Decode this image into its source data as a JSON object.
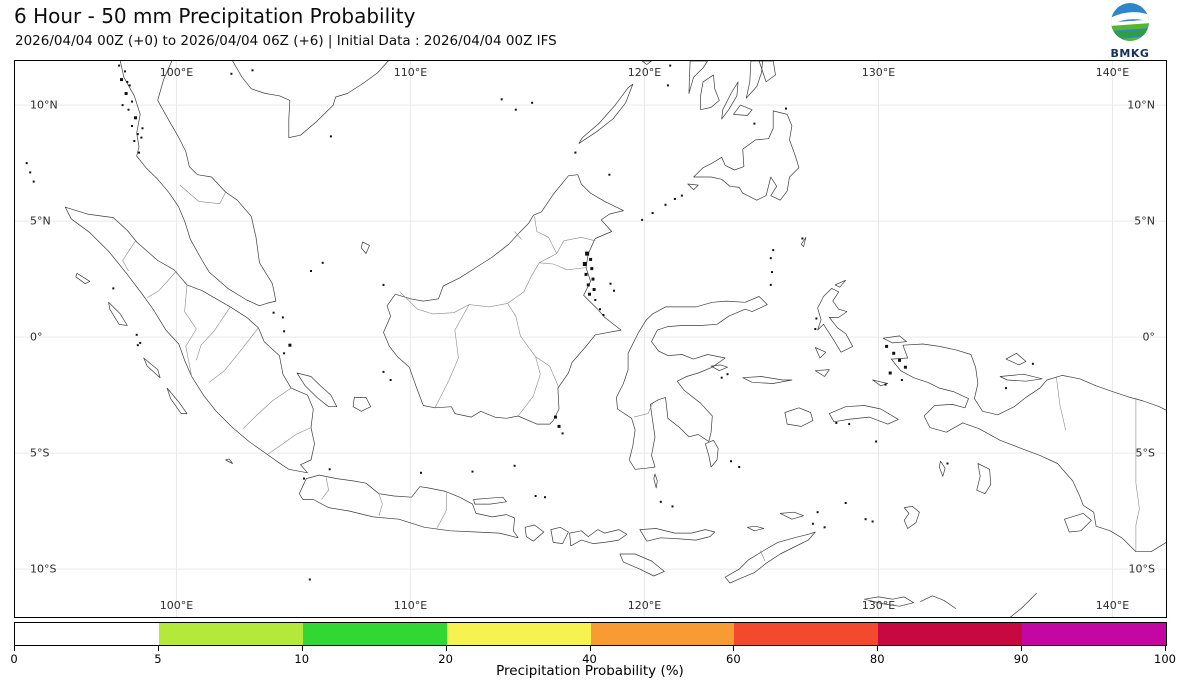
{
  "header": {
    "title": "6 Hour - 50 mm Precipitation Probability",
    "subtitle": "2026/04/04 00Z (+0) to 2026/04/04 06Z (+6) | Initial Data : 2026/04/04 00Z IFS",
    "logo_text": "BMKG"
  },
  "map": {
    "lon_ticks": [
      {
        "label": "100°E",
        "lon": 100
      },
      {
        "label": "110°E",
        "lon": 110
      },
      {
        "label": "120°E",
        "lon": 120
      },
      {
        "label": "130°E",
        "lon": 130
      },
      {
        "label": "140°E",
        "lon": 140
      }
    ],
    "lat_ticks": [
      {
        "label": "10°N",
        "lat": 10
      },
      {
        "label": "5°N",
        "lat": 5
      },
      {
        "label": "0°",
        "lat": 0
      },
      {
        "label": "5°S",
        "lat": -5
      },
      {
        "label": "10°S",
        "lat": -10
      }
    ]
  },
  "colorbar": {
    "title": "Precipitation Probability (%)",
    "tick_labels": [
      "0",
      "5",
      "10",
      "20",
      "40",
      "60",
      "80",
      "90",
      "100"
    ],
    "segments": [
      {
        "from": 0,
        "to": 5,
        "color": "#ffffff"
      },
      {
        "from": 5,
        "to": 10,
        "color": "#b4e93c"
      },
      {
        "from": 10,
        "to": 20,
        "color": "#33d733"
      },
      {
        "from": 20,
        "to": 40,
        "color": "#f6f250"
      },
      {
        "from": 40,
        "to": 60,
        "color": "#f99b33"
      },
      {
        "from": 60,
        "to": 80,
        "color": "#f34a2e"
      },
      {
        "from": 80,
        "to": 90,
        "color": "#c70841"
      },
      {
        "from": 90,
        "to": 100,
        "color": "#c407a3"
      }
    ]
  }
}
